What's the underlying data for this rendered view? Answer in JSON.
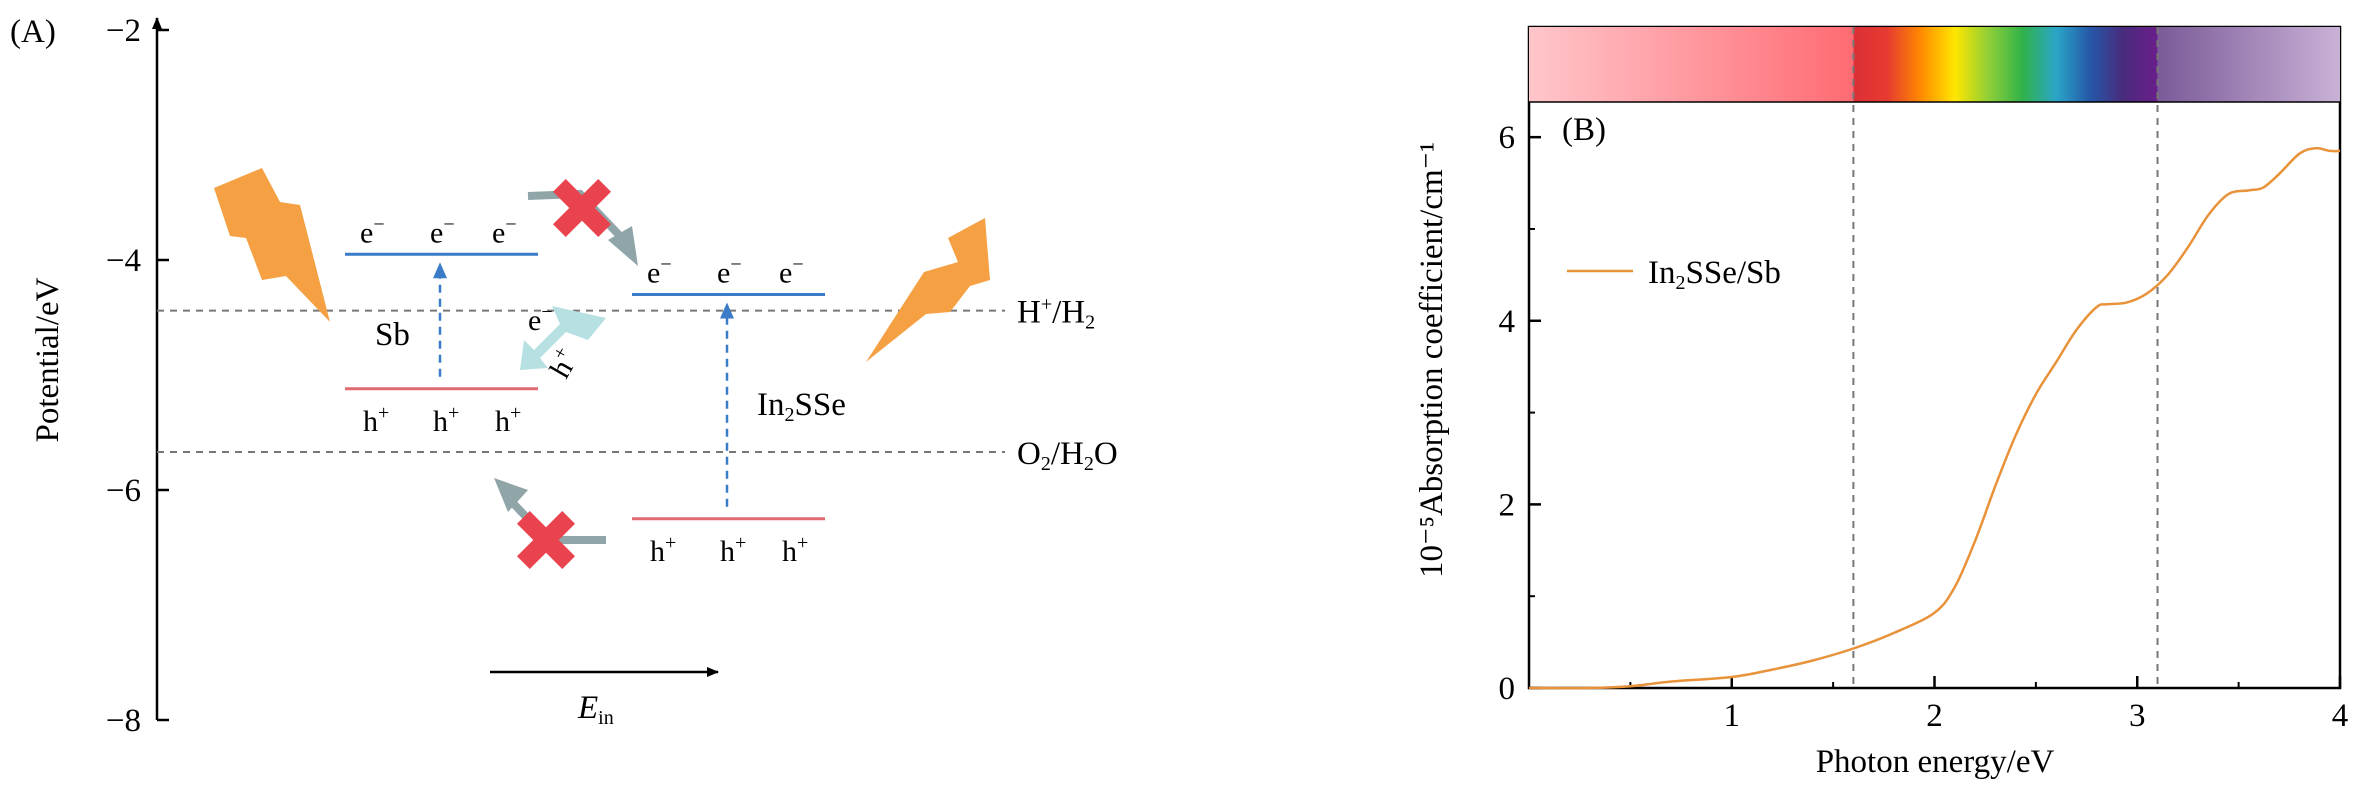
{
  "panel_a": {
    "panel_label": "(A)",
    "chart_data": {
      "type": "energy-band-diagram",
      "ylabel": "Potential/eV",
      "ylim": [
        -8,
        -2
      ],
      "yticks": [
        -2,
        -4,
        -6,
        -8
      ],
      "yticklabels": [
        "−2",
        "−4",
        "−6",
        "−8"
      ],
      "x_arrow_label": {
        "main": "E",
        "sub": "in"
      },
      "reference_levels": [
        {
          "name": "H+/H2",
          "value": -4.44,
          "label_main": "H",
          "label_sup": "+",
          "label_mid": "/H",
          "label_sub": "2"
        },
        {
          "name": "O2/H2O",
          "value": -5.67,
          "label_main": "O",
          "label_sub": "2",
          "label_mid": "/H",
          "label_sub2": "2",
          "label_end": "O"
        }
      ],
      "materials": [
        {
          "name": "Sb",
          "cbm": -3.95,
          "vbm": -5.12,
          "cbm_color": "#3a7cc8",
          "vbm_color": "#e06a72",
          "electron_labels": [
            "e",
            "e",
            "e"
          ],
          "hole_labels": [
            "h",
            "h",
            "h"
          ]
        },
        {
          "name": "In2SSe",
          "label_main": "In",
          "label_sub": "2",
          "label_end": "SSe",
          "cbm": -4.3,
          "vbm": -6.25,
          "cbm_color": "#3a7cc8",
          "vbm_color": "#e06a72",
          "electron_labels": [
            "e",
            "e",
            "e"
          ],
          "hole_labels": [
            "h",
            "h",
            "h"
          ]
        }
      ],
      "transfer_labels": {
        "electron": "e",
        "hole": "h"
      },
      "charge_signs": {
        "electron": "−",
        "hole": "+"
      },
      "colors": {
        "lightning": "#f4a043",
        "blocked": "#e8434e",
        "transfer": "#b6e0e2",
        "grey_arrow": "#8fa5a8",
        "dashed": "#777777"
      }
    }
  },
  "panel_b": {
    "panel_label": "(B)",
    "chart_data": {
      "type": "line",
      "xlabel": "Photon energy/eV",
      "ylabel": "10⁻⁵Absorption coefficient/cm⁻¹",
      "xlim": [
        0,
        4
      ],
      "ylim": [
        0,
        7.2
      ],
      "xticks": [
        1,
        2,
        3,
        4
      ],
      "yticks": [
        0,
        2,
        4,
        6
      ],
      "vlines": [
        1.6,
        3.1
      ],
      "series": [
        {
          "name": "In2SSe/Sb",
          "legend_main": "In",
          "legend_sub": "2",
          "legend_end": "SSe/Sb",
          "color": "#e8923a",
          "x": [
            0,
            0.3,
            0.5,
            0.7,
            1.0,
            1.2,
            1.4,
            1.6,
            1.8,
            2.0,
            2.1,
            2.2,
            2.3,
            2.4,
            2.5,
            2.6,
            2.7,
            2.8,
            2.85,
            2.95,
            3.05,
            3.15,
            3.25,
            3.35,
            3.45,
            3.55,
            3.62,
            3.7,
            3.8,
            3.88,
            3.95,
            4.0
          ],
          "y": [
            0.0,
            0.0,
            0.02,
            0.07,
            0.12,
            0.2,
            0.3,
            0.43,
            0.6,
            0.82,
            1.1,
            1.6,
            2.2,
            2.75,
            3.2,
            3.55,
            3.9,
            4.15,
            4.18,
            4.2,
            4.3,
            4.5,
            4.8,
            5.15,
            5.38,
            5.42,
            5.45,
            5.6,
            5.82,
            5.88,
            5.85,
            5.85
          ]
        }
      ],
      "spectrum_bar": {
        "infrared_colors": [
          "#ffc6cb",
          "#ff6b73"
        ],
        "visible_colors": [
          "#dc2f36",
          "#e63a30",
          "#ff8a00",
          "#ffe600",
          "#8fcf37",
          "#31b24a",
          "#2aa6c8",
          "#2558a8",
          "#4a2a7c",
          "#6a1f8a"
        ],
        "uv_colors": [
          "#7a5a98",
          "#c9b1d6"
        ]
      }
    }
  }
}
